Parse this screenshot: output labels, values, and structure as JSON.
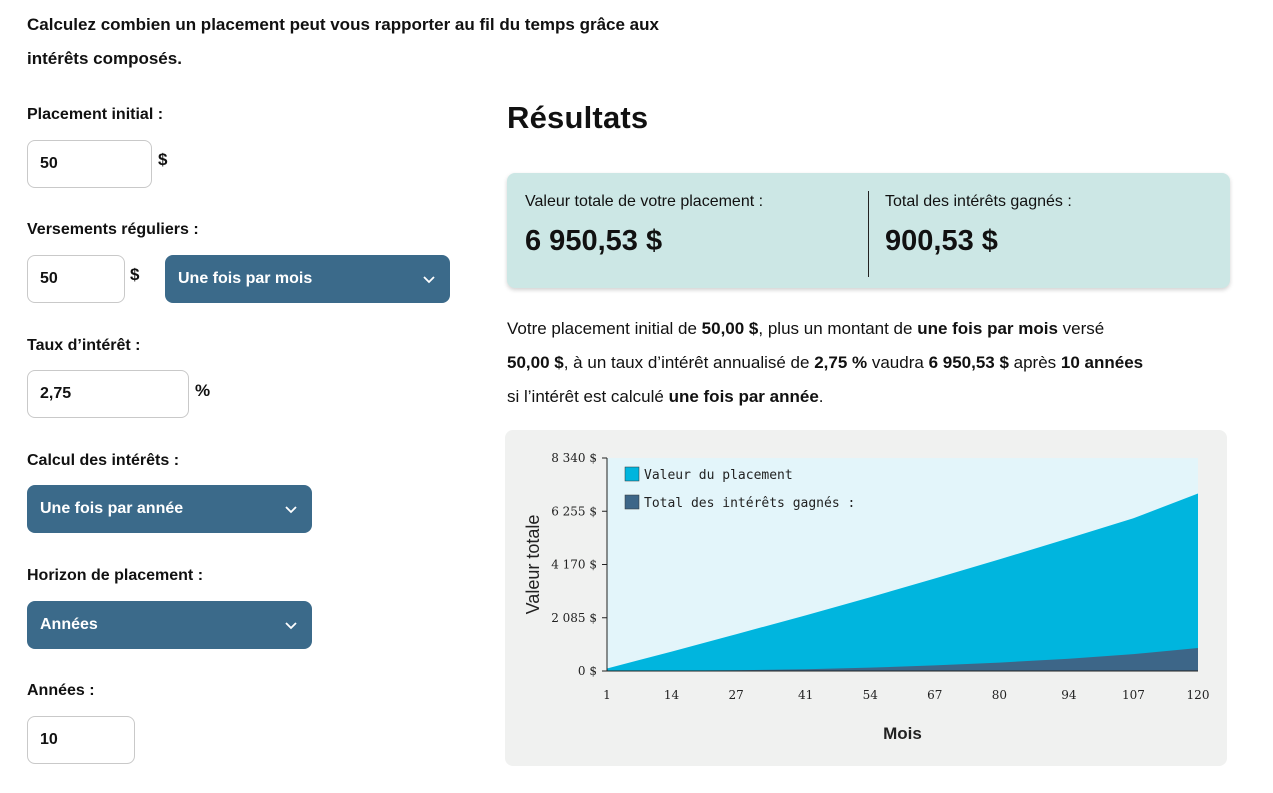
{
  "intro": {
    "line1": "Calculez combien un placement peut vous rapporter au fil du temps grâce aux",
    "line2": "intérêts composés."
  },
  "form": {
    "initial": {
      "label": "Placement initial :",
      "value": "50",
      "unit": "$"
    },
    "regular": {
      "label": "Versements réguliers :",
      "value": "50",
      "unit": "$",
      "frequency": "Une fois par mois"
    },
    "rate": {
      "label": "Taux d’intérêt :",
      "value": "2,75",
      "unit": "%"
    },
    "compounding": {
      "label": "Calcul des intérêts :",
      "selected": "Une fois par année"
    },
    "horizon": {
      "label": "Horizon de placement :",
      "selected": "Années"
    },
    "years": {
      "label": "Années :",
      "value": "10"
    }
  },
  "results": {
    "title": "Résultats",
    "total_label": "Valeur totale de votre placement :",
    "total_value": "6 950,53 $",
    "interest_label": "Total des intérêts gagnés :",
    "interest_value": "900,53 $"
  },
  "description": {
    "p1": "Votre placement initial de ",
    "b1": "50,00 $",
    "p2": ", plus un montant de ",
    "b2": "une fois par mois",
    "p3": " versé ",
    "b3": "50,00 $",
    "p4": ", à un taux d’intérêt annualisé de ",
    "b4": "2,75 %",
    "p5": " vaudra ",
    "b5": "6 950,53 $",
    "p6": " après ",
    "b6": "10 années",
    "p7": " si l’intérêt est calculé ",
    "b7": "une fois par année",
    "p8": "."
  },
  "colors": {
    "accent_select": "#3b6a8a",
    "summary_bg": "#cce7e5",
    "series_value": "#00b5de",
    "series_interest": "#3d6688",
    "plot_bg": "#e3f5fa"
  },
  "chart_data": {
    "type": "area",
    "xlabel": "Mois",
    "ylabel": "Valeur totale",
    "xlim": [
      1,
      120
    ],
    "ylim": [
      0,
      8340
    ],
    "x_ticks": [
      "1",
      "14",
      "27",
      "41",
      "54",
      "67",
      "80",
      "94",
      "107",
      "120"
    ],
    "y_ticks": [
      "0 $",
      "2 085 $",
      "4 170 $",
      "6 255 $",
      "8 340 $"
    ],
    "legend": "top-left",
    "grid": false,
    "x": [
      1,
      14,
      27,
      41,
      54,
      67,
      80,
      94,
      107,
      120
    ],
    "series": [
      {
        "name": "Valeur du placement",
        "color": "#00b5de",
        "values": [
          100,
          760,
          1440,
          2180,
          2890,
          3620,
          4370,
          5200,
          5980,
          6950
        ]
      },
      {
        "name": "Total des intérêts gagnés :",
        "color": "#3d6688",
        "values": [
          0,
          10,
          30,
          70,
          130,
          220,
          330,
          480,
          660,
          900
        ]
      }
    ]
  }
}
